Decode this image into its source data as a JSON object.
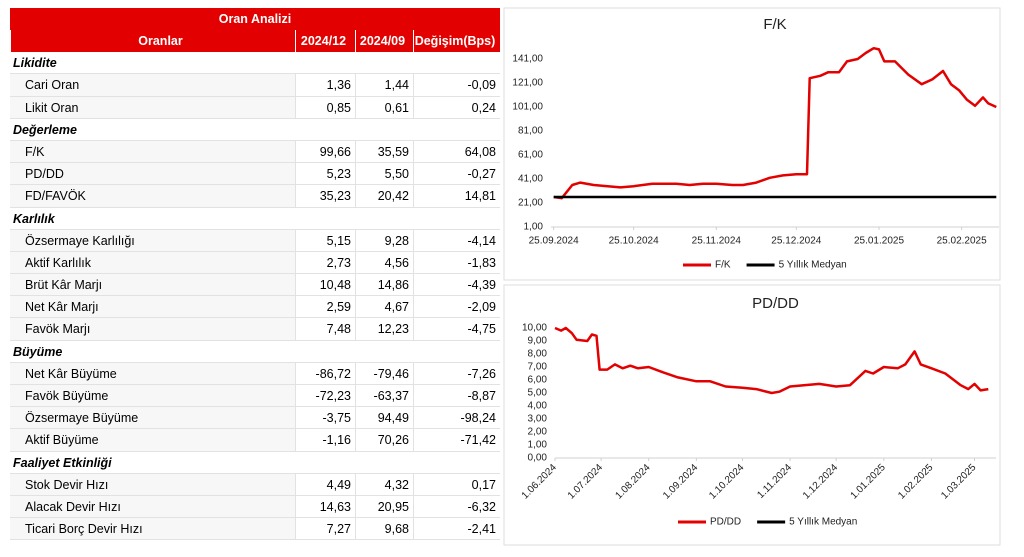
{
  "table": {
    "title": "Oran Analizi",
    "columns": [
      "Oranlar",
      "2024/12",
      "2024/09",
      "Değişim(Bps)"
    ],
    "rows": [
      [
        "Likidite"
      ],
      [
        "Cari Oran",
        "1,36",
        "1,44",
        "-0,09"
      ],
      [
        "Likit Oran",
        "0,85",
        "0,61",
        "0,24"
      ],
      [
        "Değerleme"
      ],
      [
        "F/K",
        "99,66",
        "35,59",
        "64,08"
      ],
      [
        "PD/DD",
        "5,23",
        "5,50",
        "-0,27"
      ],
      [
        "FD/FAVÖK",
        "35,23",
        "20,42",
        "14,81"
      ],
      [
        "Karlılık"
      ],
      [
        "Özsermaye Karlılığı",
        "5,15",
        "9,28",
        "-4,14"
      ],
      [
        "Aktif Karlılık",
        "2,73",
        "4,56",
        "-1,83"
      ],
      [
        "Brüt Kâr Marjı",
        "10,48",
        "14,86",
        "-4,39"
      ],
      [
        "Net Kâr Marjı",
        "2,59",
        "4,67",
        "-2,09"
      ],
      [
        "Favök Marjı",
        "7,48",
        "12,23",
        "-4,75"
      ],
      [
        "Büyüme"
      ],
      [
        "Net Kâr Büyüme",
        "-86,72",
        "-79,46",
        "-7,26"
      ],
      [
        "Favök Büyüme",
        "-72,23",
        "-63,37",
        "-8,87"
      ],
      [
        "Özsermaye Büyüme",
        "-3,75",
        "94,49",
        "-98,24"
      ],
      [
        "Aktif Büyüme",
        "-1,16",
        "70,26",
        "-71,42"
      ],
      [
        "Faaliyet Etkinliği"
      ],
      [
        "Stok Devir Hızı",
        "4,49",
        "4,32",
        "0,17"
      ],
      [
        "Alacak Devir Hızı",
        "14,63",
        "20,95",
        "-6,32"
      ],
      [
        "Ticari Borç Devir Hızı",
        "7,27",
        "9,68",
        "-2,41"
      ]
    ]
  },
  "chart_data": [
    {
      "type": "line",
      "title": "F/K",
      "x": [
        "25.09.2024",
        "28.09.2024",
        "02.10.2024",
        "05.10.2024",
        "10.10.2024",
        "20.10.2024",
        "25.10.2024",
        "01.11.2024",
        "10.11.2024",
        "15.11.2024",
        "20.11.2024",
        "25.11.2024",
        "01.12.2024",
        "05.12.2024",
        "10.12.2024",
        "15.12.2024",
        "20.12.2024",
        "25.12.2024",
        "29.12.2024",
        "30.12.2024",
        "03.01.2025",
        "06.01.2025",
        "10.01.2025",
        "13.01.2025",
        "17.01.2025",
        "20.01.2025",
        "23.01.2025",
        "25.01.2025",
        "27.01.2025",
        "31.01.2025",
        "05.02.2025",
        "10.02.2025",
        "14.02.2025",
        "18.02.2025",
        "21.02.2025",
        "24.02.2025",
        "27.02.2025",
        "02.03.2025",
        "05.03.2025",
        "07.03.2025",
        "10.03.2025"
      ],
      "series": [
        {
          "name": "F/K",
          "color": "#e30000",
          "values": [
            26,
            25,
            36,
            38,
            36,
            34,
            35,
            37,
            37,
            36,
            37,
            37,
            36,
            36,
            38,
            42,
            44,
            45,
            45,
            125,
            127,
            130,
            130,
            139,
            141,
            146,
            150,
            149,
            139,
            139,
            128,
            120,
            124,
            131,
            120,
            115,
            107,
            102,
            109,
            104,
            101
          ]
        },
        {
          "name": "5 Yıllık Medyan",
          "color": "#000000",
          "values": [
            26,
            26,
            26,
            26,
            26,
            26,
            26,
            26,
            26,
            26,
            26,
            26,
            26,
            26,
            26,
            26,
            26,
            26,
            26,
            26,
            26,
            26,
            26,
            26,
            26,
            26,
            26,
            26,
            26,
            26,
            26,
            26,
            26,
            26,
            26,
            26,
            26,
            26,
            26,
            26,
            26
          ]
        }
      ],
      "xlim": [
        "24.09.2024",
        "11.03.2025"
      ],
      "xticks": [
        "25.09.2024",
        "25.10.2024",
        "25.11.2024",
        "25.12.2024",
        "25.01.2025",
        "25.02.2025"
      ],
      "ylim": [
        1,
        161
      ],
      "yticks": [
        {
          "value": 1,
          "label": "1,00"
        },
        {
          "value": 21,
          "label": "21,00"
        },
        {
          "value": 41,
          "label": "41,00"
        },
        {
          "value": 61,
          "label": "61,00"
        },
        {
          "value": 81,
          "label": "81,00"
        },
        {
          "value": 101,
          "label": "101,00"
        },
        {
          "value": 121,
          "label": "121,00"
        },
        {
          "value": 141,
          "label": "141,00"
        }
      ],
      "grid": false,
      "xtick_rotation": 0
    },
    {
      "type": "line",
      "title": "PD/DD",
      "x": [
        "1.06.2024",
        "5.06.2024",
        "8.06.2024",
        "12.06.2024",
        "15.06.2024",
        "22.06.2024",
        "25.06.2024",
        "28.06.2024",
        "30.06.2024",
        "5.07.2024",
        "10.07.2024",
        "15.07.2024",
        "20.07.2024",
        "25.07.2024",
        "1.08.2024",
        "10.08.2024",
        "20.08.2024",
        "1.09.2024",
        "10.09.2024",
        "20.09.2024",
        "1.10.2024",
        "10.10.2024",
        "20.10.2024",
        "25.10.2024",
        "1.11.2024",
        "10.11.2024",
        "20.11.2024",
        "1.12.2024",
        "10.12.2024",
        "20.12.2024",
        "25.12.2024",
        "1.01.2025",
        "10.01.2025",
        "15.01.2025",
        "21.01.2025",
        "25.01.2025",
        "1.02.2025",
        "10.02.2025",
        "20.02.2025",
        "25.02.2025",
        "1.03.2025",
        "5.03.2025",
        "10.03.2025"
      ],
      "series": [
        {
          "name": "PD/DD",
          "color": "#e30000",
          "values": [
            10.0,
            9.8,
            10.0,
            9.6,
            9.1,
            9.0,
            9.5,
            9.4,
            6.8,
            6.8,
            7.2,
            6.9,
            7.1,
            6.9,
            7.0,
            6.6,
            6.2,
            5.9,
            5.9,
            5.5,
            5.4,
            5.3,
            5.0,
            5.1,
            5.5,
            5.6,
            5.7,
            5.5,
            5.6,
            6.7,
            6.5,
            7.0,
            6.9,
            7.2,
            8.2,
            7.2,
            6.9,
            6.5,
            5.6,
            5.3,
            5.7,
            5.2,
            5.3
          ]
        },
        {
          "name": "5 Yıllık Medyan",
          "color": "#000000",
          "values": [
            null,
            null,
            null,
            null,
            null,
            null,
            null,
            null,
            null,
            null,
            null,
            null,
            null,
            null,
            null,
            null,
            null,
            null,
            null,
            null,
            null,
            null,
            null,
            null,
            null,
            null,
            null,
            null,
            null,
            null,
            null,
            null,
            null,
            null,
            null,
            null,
            null,
            null,
            null,
            null,
            null,
            null,
            null
          ]
        }
      ],
      "xlim": [
        "1.06.2024",
        "15.03.2025"
      ],
      "xticks": [
        "1.06.2024",
        "1.07.2024",
        "1.08.2024",
        "1.09.2024",
        "1.10.2024",
        "1.11.2024",
        "1.12.2024",
        "1.01.2025",
        "1.02.2025",
        "1.03.2025"
      ],
      "ylim": [
        0,
        10
      ],
      "yticks": [
        {
          "value": 0,
          "label": "0,00"
        },
        {
          "value": 1,
          "label": "1,00"
        },
        {
          "value": 2,
          "label": "2,00"
        },
        {
          "value": 3,
          "label": "3,00"
        },
        {
          "value": 4,
          "label": "4,00"
        },
        {
          "value": 5,
          "label": "5,00"
        },
        {
          "value": 6,
          "label": "6,00"
        },
        {
          "value": 7,
          "label": "7,00"
        },
        {
          "value": 8,
          "label": "8,00"
        },
        {
          "value": 9,
          "label": "9,00"
        },
        {
          "value": 10,
          "label": "10,00"
        }
      ],
      "grid": false,
      "xtick_rotation": -45
    }
  ]
}
